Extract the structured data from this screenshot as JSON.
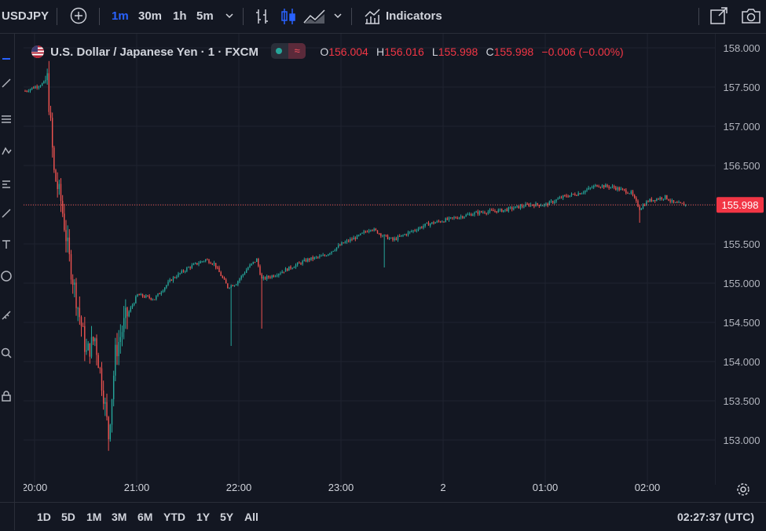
{
  "toolbar": {
    "symbol": "USDJPY",
    "intervals": [
      "1m",
      "30m",
      "1h",
      "5m"
    ],
    "active_interval": "1m",
    "indicators_label": "Indicators"
  },
  "legend": {
    "title": "U.S. Dollar / Japanese Yen · 1 · FXCM",
    "open_label": "O",
    "open": "156.004",
    "high_label": "H",
    "high": "156.016",
    "low_label": "L",
    "low": "155.998",
    "close_label": "C",
    "close": "155.998",
    "change": "−0.006 (−0.00%)"
  },
  "price_axis": {
    "ticks": [
      "158.000",
      "157.500",
      "157.000",
      "156.500",
      "156.000",
      "155.500",
      "155.000",
      "154.500",
      "154.000",
      "153.500",
      "153.000"
    ],
    "last_price": "155.998"
  },
  "time_axis": {
    "labels": [
      "20:00",
      "21:00",
      "22:00",
      "23:00",
      "2",
      "01:00",
      "02:00"
    ]
  },
  "bottom": {
    "ranges": [
      "1D",
      "5D",
      "1M",
      "3M",
      "6M",
      "YTD",
      "1Y",
      "5Y",
      "All"
    ],
    "clock": "02:27:37 (UTC)"
  },
  "colors": {
    "background": "#131722",
    "up": "#26a69a",
    "down": "#ef5350",
    "grid": "#1f2330",
    "accent": "#2962ff",
    "last_price_bg": "#f23645"
  },
  "chart_data": {
    "type": "candlestick",
    "symbol": "USDJPY",
    "interval": "1m",
    "ylim": [
      152.7,
      158.3
    ],
    "y_ticks": [
      158.0,
      157.5,
      157.0,
      156.5,
      156.0,
      155.5,
      155.0,
      154.5,
      154.0,
      153.5,
      153.0
    ],
    "x_ticks": [
      "20:00",
      "21:00",
      "22:00",
      "23:00",
      "2",
      "01:00",
      "02:00"
    ],
    "last_price": 155.998,
    "price_path": [
      {
        "t": "19:59",
        "p": 157.45
      },
      {
        "t": "20:10",
        "p": 157.55
      },
      {
        "t": "20:12",
        "p": 157.6
      },
      {
        "t": "20:16",
        "p": 156.4
      },
      {
        "t": "20:20",
        "p": 156.05
      },
      {
        "t": "20:25",
        "p": 155.3
      },
      {
        "t": "20:30",
        "p": 154.7
      },
      {
        "t": "20:35",
        "p": 154.1
      },
      {
        "t": "20:40",
        "p": 154.3
      },
      {
        "t": "20:45",
        "p": 153.6
      },
      {
        "t": "20:48",
        "p": 153.05
      },
      {
        "t": "20:52",
        "p": 154.1
      },
      {
        "t": "20:58",
        "p": 154.55
      },
      {
        "t": "21:05",
        "p": 154.85
      },
      {
        "t": "21:15",
        "p": 154.8
      },
      {
        "t": "21:25",
        "p": 155.05
      },
      {
        "t": "21:35",
        "p": 155.2
      },
      {
        "t": "21:45",
        "p": 155.3
      },
      {
        "t": "21:50",
        "p": 155.25
      },
      {
        "t": "21:58",
        "p": 154.95
      },
      {
        "t": "22:03",
        "p": 155.0
      },
      {
        "t": "22:10",
        "p": 155.2
      },
      {
        "t": "22:15",
        "p": 155.3
      },
      {
        "t": "22:18",
        "p": 155.05
      },
      {
        "t": "22:25",
        "p": 155.1
      },
      {
        "t": "22:35",
        "p": 155.2
      },
      {
        "t": "22:45",
        "p": 155.3
      },
      {
        "t": "22:55",
        "p": 155.35
      },
      {
        "t": "23:05",
        "p": 155.5
      },
      {
        "t": "23:15",
        "p": 155.6
      },
      {
        "t": "23:22",
        "p": 155.7
      },
      {
        "t": "23:30",
        "p": 155.6
      },
      {
        "t": "23:35",
        "p": 155.55
      },
      {
        "t": "23:45",
        "p": 155.65
      },
      {
        "t": "23:55",
        "p": 155.75
      },
      {
        "t": "00:05",
        "p": 155.8
      },
      {
        "t": "00:15",
        "p": 155.85
      },
      {
        "t": "00:25",
        "p": 155.9
      },
      {
        "t": "00:40",
        "p": 155.93
      },
      {
        "t": "00:55",
        "p": 156.0
      },
      {
        "t": "01:05",
        "p": 156.0
      },
      {
        "t": "01:15",
        "p": 156.1
      },
      {
        "t": "01:25",
        "p": 156.15
      },
      {
        "t": "01:35",
        "p": 156.25
      },
      {
        "t": "01:45",
        "p": 156.22
      },
      {
        "t": "01:55",
        "p": 156.15
      },
      {
        "t": "02:00",
        "p": 155.95
      },
      {
        "t": "02:05",
        "p": 156.05
      },
      {
        "t": "02:15",
        "p": 156.1
      },
      {
        "t": "02:20",
        "p": 156.02
      },
      {
        "t": "02:27",
        "p": 155.998
      }
    ],
    "spikes": [
      {
        "t": "22:00",
        "low": 154.2
      },
      {
        "t": "22:18",
        "low": 154.42
      },
      {
        "t": "23:30",
        "low": 155.2
      },
      {
        "t": "02:00",
        "low": 155.77
      }
    ]
  }
}
